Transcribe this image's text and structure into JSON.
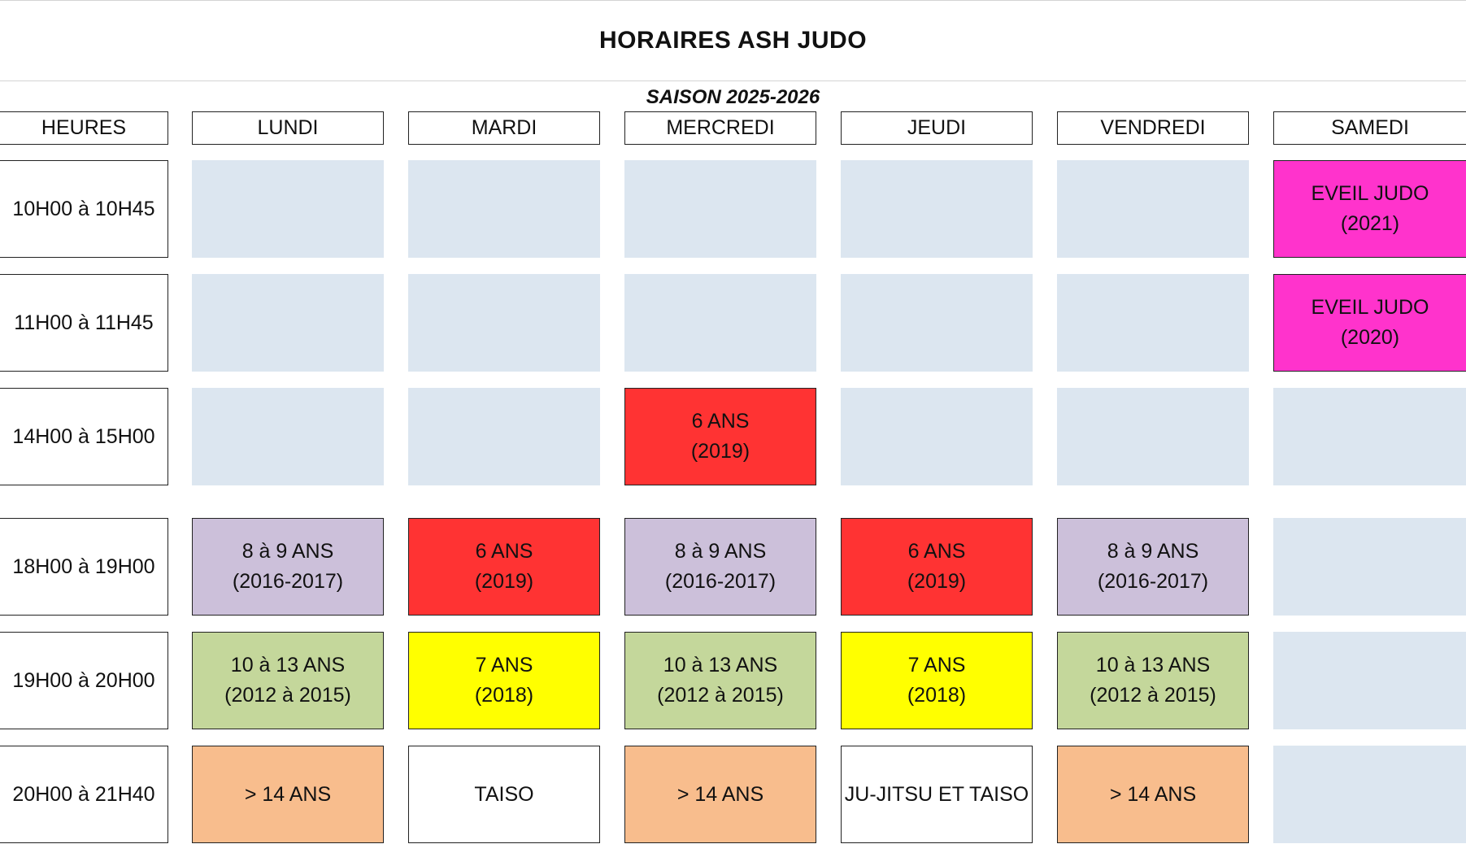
{
  "title": "HORAIRES ASH JUDO",
  "subtitle": "SAISON 2025-2026",
  "headers": {
    "hours": "HEURES",
    "days": [
      "LUNDI",
      "MARDI",
      "MERCREDI",
      "JEUDI",
      "VENDREDI",
      "SAMEDI"
    ]
  },
  "colors": {
    "empty": "#dce6f0",
    "eveil": "#ff33cc",
    "six_ans": "#ff3333",
    "huit_neuf": "#ccc0da",
    "dix_treize": "#c4d79b",
    "sept_ans": "#ffff00",
    "plus_quatorze": "#f8bd8d",
    "white": "#ffffff"
  },
  "rows": [
    {
      "time": "10H00 à 10H45",
      "cells": [
        {
          "line1": "",
          "line2": "",
          "color": "#dce6f0"
        },
        {
          "line1": "",
          "line2": "",
          "color": "#dce6f0"
        },
        {
          "line1": "",
          "line2": "",
          "color": "#dce6f0"
        },
        {
          "line1": "",
          "line2": "",
          "color": "#dce6f0"
        },
        {
          "line1": "",
          "line2": "",
          "color": "#dce6f0"
        },
        {
          "line1": "EVEIL JUDO",
          "line2": "(2021)",
          "color": "#ff33cc"
        }
      ]
    },
    {
      "time": "11H00 à 11H45",
      "cells": [
        {
          "line1": "",
          "line2": "",
          "color": "#dce6f0"
        },
        {
          "line1": "",
          "line2": "",
          "color": "#dce6f0"
        },
        {
          "line1": "",
          "line2": "",
          "color": "#dce6f0"
        },
        {
          "line1": "",
          "line2": "",
          "color": "#dce6f0"
        },
        {
          "line1": "",
          "line2": "",
          "color": "#dce6f0"
        },
        {
          "line1": "EVEIL JUDO",
          "line2": "(2020)",
          "color": "#ff33cc"
        }
      ]
    },
    {
      "time": "14H00 à 15H00",
      "cells": [
        {
          "line1": "",
          "line2": "",
          "color": "#dce6f0"
        },
        {
          "line1": "",
          "line2": "",
          "color": "#dce6f0"
        },
        {
          "line1": "6 ANS",
          "line2": "(2019)",
          "color": "#ff3333"
        },
        {
          "line1": "",
          "line2": "",
          "color": "#dce6f0"
        },
        {
          "line1": "",
          "line2": "",
          "color": "#dce6f0"
        },
        {
          "line1": "",
          "line2": "",
          "color": "#dce6f0"
        }
      ]
    },
    {
      "time": "18H00 à 19H00",
      "cells": [
        {
          "line1": "8 à 9 ANS",
          "line2": "(2016-2017)",
          "color": "#ccc0da"
        },
        {
          "line1": "6 ANS",
          "line2": "(2019)",
          "color": "#ff3333"
        },
        {
          "line1": "8 à 9 ANS",
          "line2": "(2016-2017)",
          "color": "#ccc0da"
        },
        {
          "line1": "6 ANS",
          "line2": "(2019)",
          "color": "#ff3333"
        },
        {
          "line1": "8 à 9 ANS",
          "line2": "(2016-2017)",
          "color": "#ccc0da"
        },
        {
          "line1": "",
          "line2": "",
          "color": "#dce6f0"
        }
      ]
    },
    {
      "time": "19H00 à 20H00",
      "cells": [
        {
          "line1": "10 à 13 ANS",
          "line2": "(2012 à 2015)",
          "color": "#c4d79b"
        },
        {
          "line1": "7 ANS",
          "line2": "(2018)",
          "color": "#ffff00"
        },
        {
          "line1": "10 à 13 ANS",
          "line2": "(2012 à 2015)",
          "color": "#c4d79b"
        },
        {
          "line1": "7 ANS",
          "line2": "(2018)",
          "color": "#ffff00"
        },
        {
          "line1": "10 à 13 ANS",
          "line2": "(2012 à 2015)",
          "color": "#c4d79b"
        },
        {
          "line1": "",
          "line2": "",
          "color": "#dce6f0"
        }
      ]
    },
    {
      "time": "20H00 à 21H40",
      "cells": [
        {
          "line1": "> 14 ANS",
          "line2": "",
          "color": "#f8bd8d"
        },
        {
          "line1": "TAISO",
          "line2": "",
          "color": "#ffffff"
        },
        {
          "line1": "> 14 ANS",
          "line2": "",
          "color": "#f8bd8d"
        },
        {
          "line1": "JU-JITSU ET TAISO",
          "line2": "",
          "color": "#ffffff"
        },
        {
          "line1": "> 14 ANS",
          "line2": "",
          "color": "#f8bd8d"
        },
        {
          "line1": "",
          "line2": "",
          "color": "#dce6f0"
        }
      ]
    }
  ]
}
